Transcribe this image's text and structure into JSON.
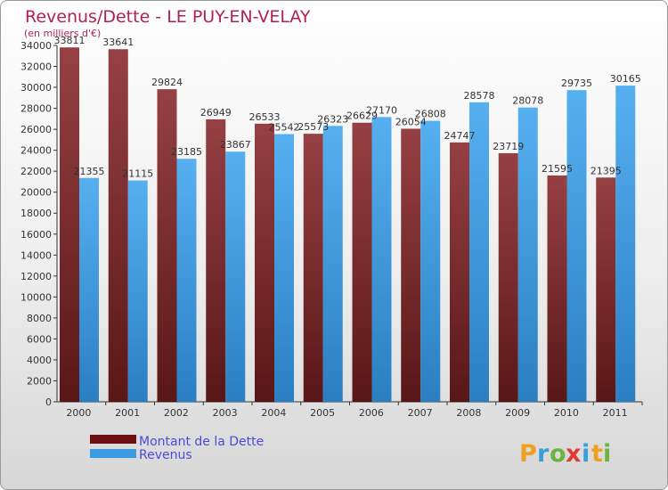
{
  "chart_data": {
    "type": "bar",
    "title": "Revenus/Dette - LE PUY-EN-VELAY",
    "subtitle": "(en milliers d'€)",
    "categories": [
      "2000",
      "2001",
      "2002",
      "2003",
      "2004",
      "2005",
      "2006",
      "2007",
      "2008",
      "2009",
      "2010",
      "2011"
    ],
    "series": [
      {
        "name": "Montant de la Dette",
        "color": "#6b0f12",
        "values": [
          33811,
          33641,
          29824,
          26949,
          26533,
          25573,
          26629,
          26054,
          24747,
          23719,
          21595,
          21395
        ],
        "labels": [
          "33811",
          "33641",
          "29824",
          "26949",
          "26533",
          "25573",
          "26629",
          "26054",
          "24747",
          "23719",
          "21595",
          "21395"
        ]
      },
      {
        "name": "Revenus",
        "color": "#3d9be3",
        "values": [
          21355,
          21115,
          23185,
          23867,
          25542,
          26323,
          27170,
          26808,
          28578,
          28078,
          29735,
          30165
        ],
        "labels": [
          "21355",
          "21115",
          "23185",
          "23867",
          "25542",
          "26323",
          "27170",
          "26808",
          "28578",
          "28078",
          "29735",
          "30165"
        ]
      }
    ],
    "ylim": [
      0,
      34000
    ],
    "yticks": [
      0,
      2000,
      4000,
      6000,
      8000,
      10000,
      12000,
      14000,
      16000,
      18000,
      20000,
      22000,
      24000,
      26000,
      28000,
      30000,
      32000,
      34000
    ],
    "grid": false,
    "legend": "bottom-left"
  },
  "logo": {
    "text": "Proxiti",
    "letters": [
      "P",
      "r",
      "o",
      "x",
      "i",
      "t",
      "i"
    ],
    "colors": [
      "#f0a020",
      "#3a9fd8",
      "#6cb33f",
      "#e03c31",
      "#3a9fd8",
      "#f0a020",
      "#6cb33f"
    ]
  }
}
